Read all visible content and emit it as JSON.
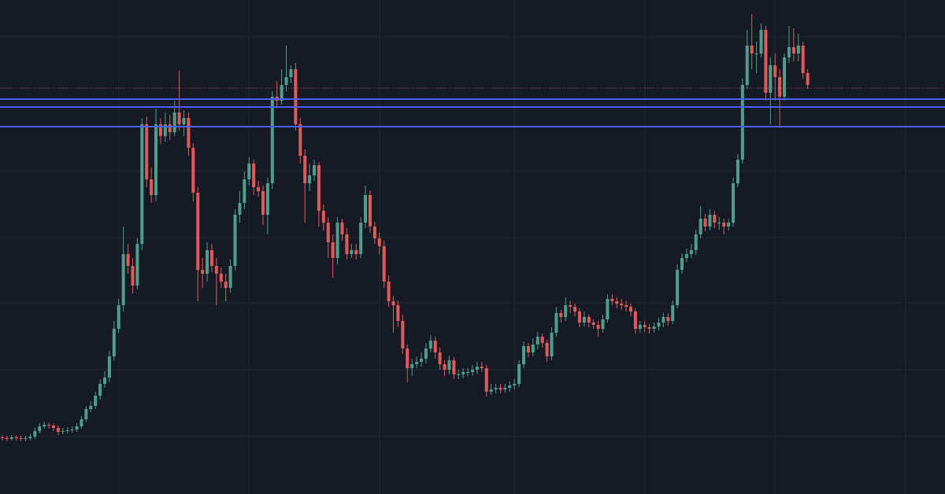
{
  "chart_data": {
    "type": "candlestick",
    "background": "#161a25",
    "grid": true,
    "grid_color": "#232836",
    "up_color": "#4f9e8c",
    "down_color": "#e05a5a",
    "xlim": [
      -0.5,
      202.5
    ],
    "ylim": [
      0,
      628
    ],
    "xticks": [
      25,
      53,
      81,
      110,
      138,
      166,
      194
    ],
    "yticks": [
      73,
      158,
      243,
      326,
      411,
      496,
      581
    ],
    "levels": [
      {
        "value": 502,
        "color": "#4b5ef0"
      },
      {
        "value": 492,
        "color": "#4b5ef0"
      },
      {
        "value": 467,
        "color": "#4b5ef0"
      }
    ],
    "price_line": {
      "value": 516,
      "color": "#e05a5a"
    },
    "open": [
      72,
      71,
      70,
      72,
      71,
      70,
      71,
      73,
      80,
      86,
      88,
      87,
      84,
      79,
      80,
      81,
      82,
      86,
      95,
      108,
      112,
      125,
      140,
      148,
      175,
      210,
      240,
      305,
      290,
      265,
      318,
      470,
      400,
      380,
      470,
      455,
      470,
      460,
      485,
      470,
      478,
      440,
      383,
      285,
      280,
      310,
      290,
      280,
      270,
      262,
      290,
      355,
      370,
      400,
      420,
      390,
      385,
      355,
      395,
      505,
      500,
      520,
      530,
      540,
      470,
      430,
      395,
      405,
      418,
      360,
      345,
      320,
      300,
      345,
      330,
      305,
      310,
      305,
      345,
      380,
      340,
      325,
      315,
      270,
      245,
      240,
      220,
      185,
      160,
      165,
      168,
      172,
      185,
      195,
      180,
      165,
      158,
      170,
      152,
      152,
      155,
      155,
      158,
      162,
      160,
      130,
      133,
      135,
      133,
      135,
      138,
      140,
      165,
      188,
      180,
      190,
      200,
      192,
      175,
      205,
      230,
      225,
      240,
      238,
      232,
      218,
      225,
      218,
      215,
      210,
      222,
      248,
      245,
      242,
      240,
      238,
      232,
      210,
      215,
      212,
      210,
      213,
      218,
      225,
      220,
      240,
      285,
      300,
      305,
      310,
      330,
      350,
      340,
      355,
      345,
      345,
      340,
      345,
      395,
      425,
      520,
      570,
      560,
      560,
      590,
      510,
      545,
      530,
      505,
      555,
      568,
      560,
      570,
      535
    ],
    "high": [
      75,
      74,
      75,
      75,
      74,
      74,
      76,
      84,
      90,
      92,
      91,
      90,
      87,
      84,
      85,
      86,
      90,
      99,
      112,
      118,
      130,
      146,
      156,
      182,
      220,
      248,
      340,
      318,
      300,
      325,
      478,
      480,
      415,
      490,
      478,
      485,
      482,
      500,
      538,
      488,
      485,
      446,
      390,
      300,
      320,
      318,
      300,
      288,
      280,
      298,
      362,
      385,
      410,
      428,
      425,
      398,
      392,
      402,
      512,
      525,
      540,
      570,
      545,
      548,
      478,
      438,
      420,
      425,
      422,
      368,
      352,
      330,
      352,
      350,
      338,
      318,
      318,
      352,
      392,
      386,
      346,
      332,
      322,
      278,
      252,
      246,
      228,
      190,
      172,
      175,
      180,
      192,
      202,
      200,
      186,
      170,
      176,
      174,
      158,
      160,
      160,
      164,
      168,
      168,
      164,
      140,
      140,
      140,
      140,
      143,
      146,
      170,
      194,
      192,
      198,
      206,
      204,
      196,
      212,
      238,
      234,
      250,
      246,
      242,
      236,
      232,
      228,
      222,
      220,
      228,
      254,
      254,
      250,
      248,
      246,
      242,
      236,
      220,
      220,
      216,
      218,
      224,
      230,
      230,
      246,
      292,
      306,
      312,
      318,
      336,
      366,
      356,
      362,
      360,
      352,
      350,
      350,
      402,
      432,
      528,
      590,
      610,
      575,
      598,
      595,
      555,
      560,
      540,
      560,
      595,
      592,
      585,
      575,
      540
    ],
    "low": [
      68,
      67,
      68,
      68,
      67,
      67,
      68,
      70,
      77,
      83,
      83,
      80,
      75,
      76,
      77,
      78,
      79,
      83,
      92,
      104,
      108,
      120,
      135,
      142,
      170,
      205,
      232,
      280,
      255,
      260,
      310,
      390,
      370,
      372,
      445,
      448,
      450,
      455,
      462,
      455,
      430,
      372,
      245,
      262,
      270,
      282,
      240,
      262,
      245,
      256,
      284,
      345,
      362,
      392,
      380,
      378,
      342,
      330,
      388,
      490,
      495,
      512,
      522,
      462,
      420,
      345,
      385,
      398,
      340,
      335,
      300,
      275,
      292,
      322,
      298,
      300,
      298,
      300,
      338,
      332,
      318,
      305,
      262,
      238,
      205,
      212,
      178,
      142,
      150,
      160,
      162,
      166,
      180,
      172,
      158,
      150,
      152,
      146,
      146,
      147,
      150,
      150,
      152,
      155,
      124,
      126,
      128,
      128,
      129,
      130,
      133,
      136,
      160,
      174,
      175,
      184,
      186,
      168,
      170,
      200,
      218,
      220,
      230,
      226,
      212,
      213,
      212,
      210,
      200,
      205,
      218,
      240,
      236,
      234,
      232,
      226,
      204,
      205,
      206,
      204,
      205,
      208,
      212,
      214,
      216,
      236,
      280,
      295,
      300,
      304,
      325,
      334,
      335,
      338,
      336,
      330,
      335,
      340,
      390,
      420,
      515,
      540,
      535,
      555,
      500,
      470,
      500,
      465,
      500,
      548,
      550,
      550,
      528,
      515
    ],
    "close": [
      71,
      70,
      72,
      71,
      70,
      71,
      73,
      80,
      86,
      88,
      87,
      84,
      79,
      80,
      81,
      82,
      86,
      95,
      108,
      112,
      125,
      140,
      148,
      175,
      210,
      240,
      305,
      290,
      265,
      318,
      470,
      400,
      380,
      470,
      455,
      470,
      460,
      485,
      470,
      478,
      440,
      383,
      285,
      280,
      310,
      290,
      280,
      270,
      262,
      290,
      355,
      370,
      400,
      420,
      390,
      385,
      355,
      395,
      505,
      500,
      520,
      530,
      540,
      470,
      430,
      395,
      405,
      418,
      360,
      345,
      320,
      300,
      345,
      330,
      305,
      310,
      305,
      345,
      380,
      340,
      325,
      315,
      270,
      245,
      240,
      220,
      185,
      160,
      165,
      168,
      172,
      185,
      195,
      180,
      165,
      158,
      170,
      152,
      152,
      155,
      155,
      158,
      162,
      160,
      130,
      133,
      135,
      133,
      135,
      138,
      140,
      165,
      188,
      180,
      190,
      200,
      192,
      175,
      205,
      230,
      225,
      240,
      238,
      232,
      218,
      225,
      218,
      215,
      210,
      222,
      248,
      245,
      242,
      240,
      238,
      232,
      210,
      215,
      212,
      210,
      213,
      218,
      225,
      220,
      240,
      285,
      300,
      305,
      310,
      330,
      350,
      340,
      355,
      345,
      345,
      340,
      345,
      395,
      425,
      520,
      570,
      560,
      560,
      590,
      510,
      545,
      530,
      505,
      555,
      568,
      560,
      570,
      535,
      520
    ]
  }
}
